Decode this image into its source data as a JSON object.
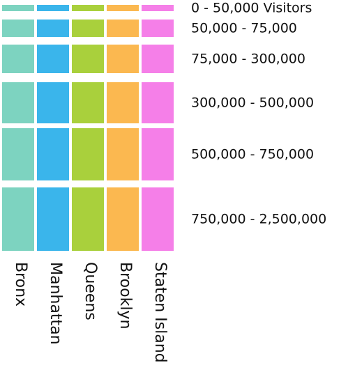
{
  "boroughs": [
    {
      "name": "Bronx",
      "color": "#7dd3c0"
    },
    {
      "name": "Manhattan",
      "color": "#3ab5eb"
    },
    {
      "name": "Queens",
      "color": "#a9d03c"
    },
    {
      "name": "Brooklyn",
      "color": "#fbb850"
    },
    {
      "name": "Staten Island",
      "color": "#f57fe8"
    }
  ],
  "tiers": [
    {
      "label": "0 - 50,000 Visitors"
    },
    {
      "label": "50,000 - 75,000"
    },
    {
      "label": "75,000 - 300,000"
    },
    {
      "label": "300,000 - 500,000"
    },
    {
      "label": "500,000 - 750,000"
    },
    {
      "label": "750,000 - 2,500,000"
    }
  ]
}
